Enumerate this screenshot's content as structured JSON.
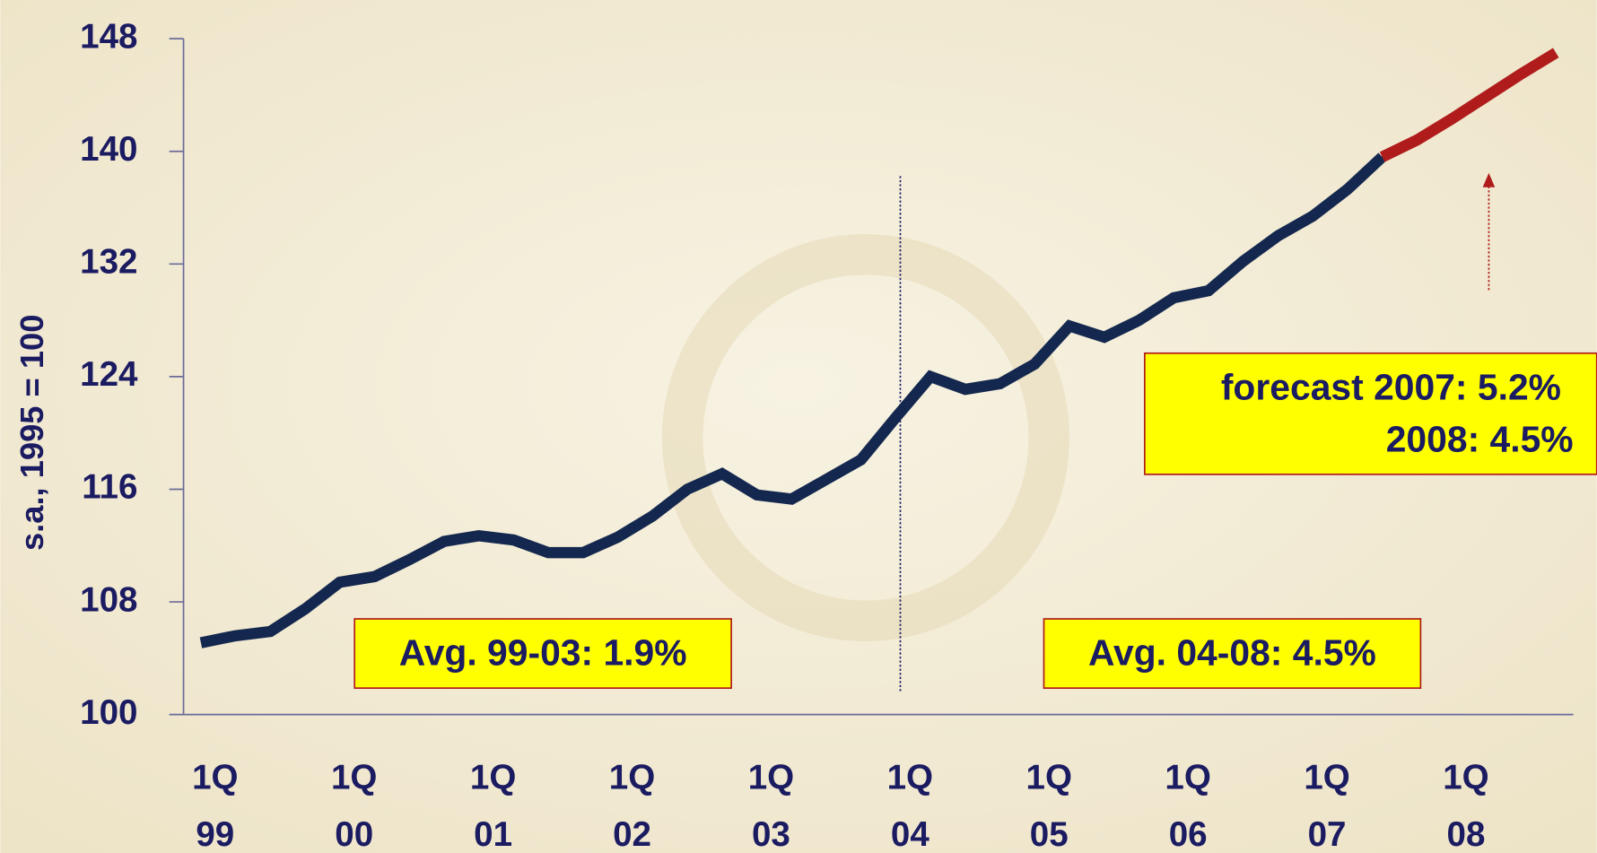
{
  "chart_data": {
    "type": "line",
    "y_label": "s.a., 1995 = 100",
    "categories": [
      "1Q 99",
      null,
      null,
      null,
      "1Q 00",
      null,
      null,
      null,
      "1Q 01",
      null,
      null,
      null,
      "1Q 02",
      null,
      null,
      null,
      "1Q 03",
      null,
      null,
      null,
      "1Q 04",
      null,
      null,
      null,
      "1Q 05",
      null,
      null,
      null,
      "1Q 06",
      null,
      null,
      null,
      "1Q 07",
      null,
      null,
      null,
      "1Q 08",
      null,
      null,
      null
    ],
    "series": [
      {
        "color": "#14284f",
        "values": [
          105.1,
          105.6,
          105.9,
          107.5,
          109.4,
          109.8,
          111.0,
          112.3,
          112.7,
          112.4,
          111.5,
          111.5,
          112.6,
          114.1,
          116.0,
          117.1,
          115.6,
          115.3,
          116.7,
          118.1,
          121.1,
          124.0,
          123.1,
          123.5,
          124.9,
          127.6,
          126.8,
          128.0,
          129.6,
          130.1,
          132.2,
          134.0,
          135.4,
          137.3,
          139.6,
          null,
          null,
          null,
          null,
          null
        ]
      },
      {
        "color": "#b01c1c",
        "values": [
          null,
          null,
          null,
          null,
          null,
          null,
          null,
          null,
          null,
          null,
          null,
          null,
          null,
          null,
          null,
          null,
          null,
          null,
          null,
          null,
          null,
          null,
          null,
          null,
          null,
          null,
          null,
          null,
          null,
          null,
          null,
          null,
          null,
          null,
          139.6,
          140.8,
          142.3,
          143.9,
          145.5,
          147.0
        ]
      }
    ],
    "ylim": [
      100,
      148
    ],
    "yticks": [
      100,
      108,
      116,
      124,
      132,
      140,
      148
    ],
    "annotations": [
      "Avg. 99-03: 1.9%",
      "Avg. 04-08: 4.5%",
      "forecast 2007: 5.2%",
      "2008: 4.5%"
    ]
  }
}
